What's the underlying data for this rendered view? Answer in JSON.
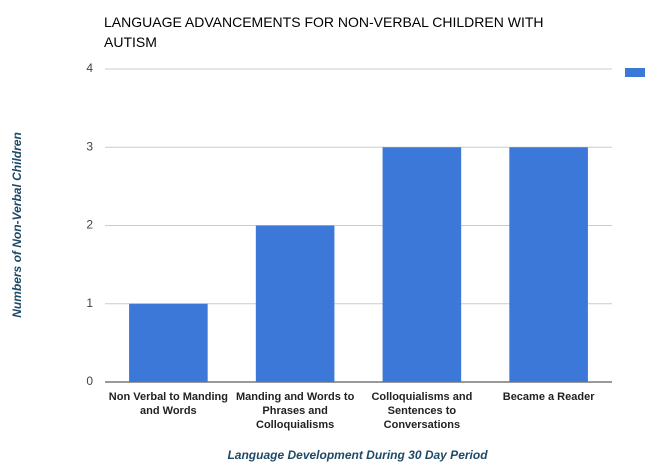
{
  "chart_data": {
    "type": "bar",
    "title": "LANGUAGE ADVANCEMENTS FOR NON-VERBAL CHILDREN WITH AUTISM",
    "x_label": "Language Development During 30 Day Period",
    "y_label": "Numbers of Non-Verbal Children",
    "categories": [
      "Non Verbal to Manding and Words",
      "Manding and Words to Phrases and Colloquialisms",
      "Colloquialisms and Sentences to Conversations",
      "Became a Reader"
    ],
    "values": [
      1,
      2,
      3,
      3
    ],
    "color": "#3c78d8",
    "ylim": [
      0,
      4
    ],
    "yticks": [
      0,
      1,
      2,
      3,
      4
    ],
    "grid": true,
    "legend": "right"
  }
}
